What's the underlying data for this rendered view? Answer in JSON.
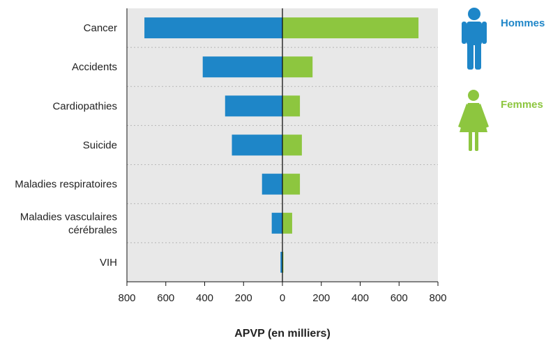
{
  "chart_data": {
    "type": "bar",
    "orientation": "horizontal-diverging",
    "categories": [
      [
        "Cancer"
      ],
      [
        "Accidents"
      ],
      [
        "Cardiopathies"
      ],
      [
        "Suicide"
      ],
      [
        "Maladies respiratoires"
      ],
      [
        "Maladies vasculaires",
        "cérébrales"
      ],
      [
        "VIH"
      ]
    ],
    "series": [
      {
        "name": "Hommes",
        "values": [
          710,
          410,
          295,
          260,
          105,
          55,
          10
        ],
        "color": "#1e86c8",
        "icon": "male-figure-icon"
      },
      {
        "name": "Femmes",
        "values": [
          700,
          155,
          90,
          100,
          90,
          50,
          5
        ],
        "color": "#8dc63f",
        "icon": "female-figure-icon"
      }
    ],
    "xlabel": "APVP (en milliers)",
    "xticks": [
      800,
      600,
      400,
      200,
      0,
      200,
      400,
      600,
      800
    ],
    "xlim": [
      -800,
      800
    ],
    "grid": "dotted separators between categories",
    "legend_position": "right",
    "plot_background": "#e8e8e8"
  }
}
